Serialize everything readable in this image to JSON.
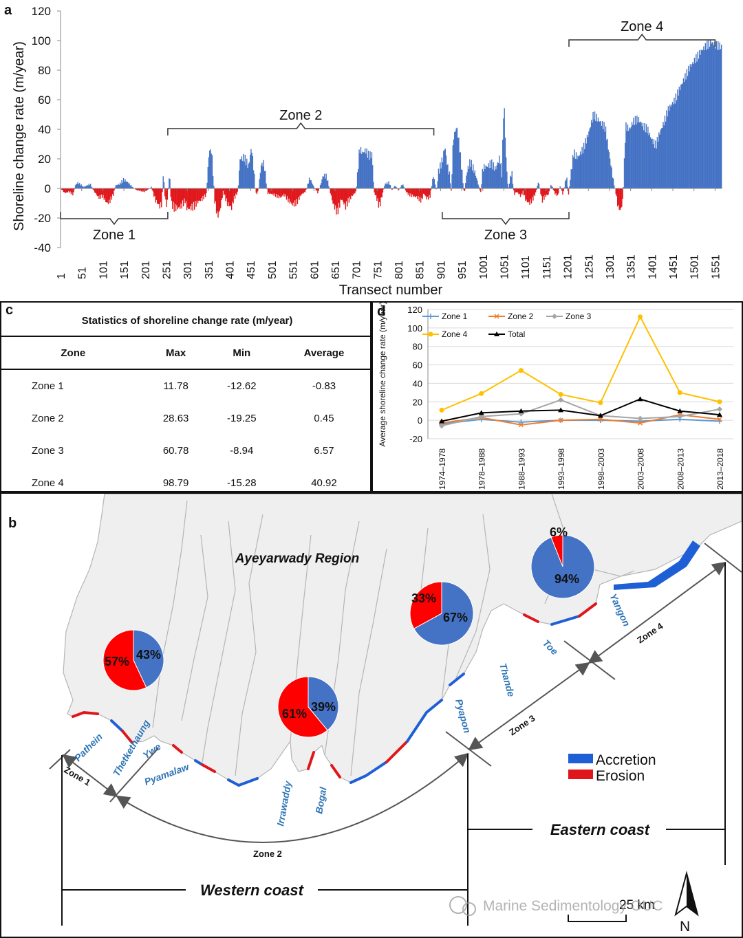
{
  "panel_labels": {
    "a": "a",
    "b": "b",
    "c": "c",
    "d": "d"
  },
  "chart_data": [
    {
      "id": "a",
      "type": "bar",
      "title": "",
      "xlabel": "Transect number",
      "ylabel": "Shoreline change rate (m/year)",
      "ylim": [
        -40,
        120
      ],
      "yticks": [
        -40,
        -20,
        0,
        20,
        40,
        60,
        80,
        100,
        120
      ],
      "xlim": [
        1,
        1565
      ],
      "xticks": [
        1,
        51,
        101,
        151,
        201,
        251,
        301,
        351,
        401,
        451,
        501,
        551,
        601,
        651,
        701,
        751,
        801,
        851,
        901,
        951,
        1001,
        1051,
        1101,
        1151,
        1201,
        1251,
        1301,
        1351,
        1401,
        1451,
        1501,
        1551
      ],
      "colors": {
        "positive": "#4472c4",
        "negative": "#e0161b"
      },
      "zones": [
        {
          "label": "Zone 1",
          "start": 1,
          "end": 255,
          "side": "below"
        },
        {
          "label": "Zone 2",
          "start": 255,
          "end": 885,
          "side": "above"
        },
        {
          "label": "Zone 3",
          "start": 905,
          "end": 1205,
          "side": "below"
        },
        {
          "label": "Zone 4",
          "start": 1205,
          "end": 1551,
          "side": "above"
        }
      ],
      "profile": [
        [
          1,
          0
        ],
        [
          10,
          -3
        ],
        [
          20,
          -2
        ],
        [
          30,
          -4
        ],
        [
          35,
          2
        ],
        [
          40,
          4
        ],
        [
          55,
          1
        ],
        [
          70,
          3
        ],
        [
          80,
          -2
        ],
        [
          90,
          -6
        ],
        [
          100,
          -5
        ],
        [
          110,
          -10
        ],
        [
          115,
          -9
        ],
        [
          125,
          -4
        ],
        [
          130,
          2
        ],
        [
          140,
          3
        ],
        [
          150,
          6
        ],
        [
          160,
          4
        ],
        [
          170,
          1
        ],
        [
          180,
          -1
        ],
        [
          200,
          -2
        ],
        [
          215,
          1
        ],
        [
          225,
          -8
        ],
        [
          235,
          -12
        ],
        [
          240,
          -10
        ],
        [
          243,
          11
        ],
        [
          248,
          -8
        ],
        [
          252,
          -12
        ],
        [
          258,
          11
        ],
        [
          262,
          -10
        ],
        [
          270,
          -13
        ],
        [
          280,
          -13
        ],
        [
          285,
          -12
        ],
        [
          295,
          -8
        ],
        [
          300,
          -14
        ],
        [
          315,
          -12
        ],
        [
          325,
          -9
        ],
        [
          335,
          -7
        ],
        [
          345,
          -4
        ],
        [
          352,
          26
        ],
        [
          358,
          25
        ],
        [
          365,
          -8
        ],
        [
          372,
          -19
        ],
        [
          378,
          -14
        ],
        [
          385,
          -2
        ],
        [
          395,
          -10
        ],
        [
          405,
          -13
        ],
        [
          410,
          -7
        ],
        [
          420,
          -2
        ],
        [
          425,
          20
        ],
        [
          435,
          21
        ],
        [
          445,
          15
        ],
        [
          452,
          28
        ],
        [
          458,
          12
        ],
        [
          462,
          -4
        ],
        [
          468,
          -2
        ],
        [
          475,
          16
        ],
        [
          482,
          17
        ],
        [
          490,
          -3
        ],
        [
          505,
          -4
        ],
        [
          520,
          -6
        ],
        [
          530,
          -4
        ],
        [
          540,
          -8
        ],
        [
          550,
          -11
        ],
        [
          560,
          -9
        ],
        [
          570,
          -4
        ],
        [
          580,
          -2
        ],
        [
          590,
          7
        ],
        [
          600,
          1
        ],
        [
          610,
          -3
        ],
        [
          622,
          9
        ],
        [
          630,
          8
        ],
        [
          640,
          -4
        ],
        [
          645,
          -10
        ],
        [
          655,
          -16
        ],
        [
          665,
          -7
        ],
        [
          675,
          -12
        ],
        [
          682,
          -8
        ],
        [
          690,
          -5
        ],
        [
          700,
          -2
        ],
        [
          708,
          27
        ],
        [
          715,
          24
        ],
        [
          722,
          26
        ],
        [
          730,
          22
        ],
        [
          738,
          23
        ],
        [
          742,
          -2
        ],
        [
          748,
          -6
        ],
        [
          755,
          -12
        ],
        [
          762,
          -4
        ],
        [
          768,
          3
        ],
        [
          778,
          4
        ],
        [
          785,
          -1
        ],
        [
          792,
          2
        ],
        [
          800,
          -1
        ],
        [
          810,
          3
        ],
        [
          818,
          -2
        ],
        [
          825,
          -4
        ],
        [
          835,
          -5
        ],
        [
          845,
          -6
        ],
        [
          855,
          -8
        ],
        [
          860,
          -3
        ],
        [
          868,
          -7
        ],
        [
          875,
          -5
        ],
        [
          883,
          9
        ],
        [
          890,
          -2
        ],
        [
          895,
          11
        ],
        [
          905,
          20
        ],
        [
          910,
          29
        ],
        [
          915,
          17
        ],
        [
          922,
          8
        ],
        [
          925,
          -2
        ],
        [
          930,
          34
        ],
        [
          938,
          42
        ],
        [
          944,
          30
        ],
        [
          950,
          13
        ],
        [
          956,
          -4
        ],
        [
          962,
          11
        ],
        [
          970,
          18
        ],
        [
          980,
          12
        ],
        [
          990,
          2
        ],
        [
          995,
          -3
        ],
        [
          1000,
          14
        ],
        [
          1010,
          15
        ],
        [
          1020,
          17
        ],
        [
          1030,
          13
        ],
        [
          1040,
          21
        ],
        [
          1045,
          10
        ],
        [
          1050,
          60
        ],
        [
          1055,
          20
        ],
        [
          1060,
          -1
        ],
        [
          1068,
          12
        ],
        [
          1074,
          -4
        ],
        [
          1080,
          -2
        ],
        [
          1090,
          -5
        ],
        [
          1095,
          -2
        ],
        [
          1102,
          -8
        ],
        [
          1110,
          -10
        ],
        [
          1118,
          -7
        ],
        [
          1125,
          -3
        ],
        [
          1132,
          5
        ],
        [
          1140,
          -8
        ],
        [
          1148,
          -5
        ],
        [
          1155,
          -4
        ],
        [
          1162,
          3
        ],
        [
          1170,
          -3
        ],
        [
          1178,
          -5
        ],
        [
          1182,
          2
        ],
        [
          1190,
          -4
        ],
        [
          1198,
          9
        ],
        [
          1203,
          -4
        ],
        [
          1208,
          9
        ],
        [
          1215,
          24
        ],
        [
          1225,
          21
        ],
        [
          1238,
          27
        ],
        [
          1250,
          37
        ],
        [
          1262,
          50
        ],
        [
          1275,
          46
        ],
        [
          1290,
          41
        ],
        [
          1300,
          22
        ],
        [
          1308,
          7
        ],
        [
          1315,
          -3
        ],
        [
          1320,
          -12
        ],
        [
          1326,
          -15
        ],
        [
          1332,
          -7
        ],
        [
          1338,
          42
        ],
        [
          1348,
          40
        ],
        [
          1355,
          45
        ],
        [
          1368,
          47
        ],
        [
          1380,
          42
        ],
        [
          1390,
          40
        ],
        [
          1400,
          33
        ],
        [
          1410,
          29
        ],
        [
          1418,
          37
        ],
        [
          1428,
          44
        ],
        [
          1440,
          54
        ],
        [
          1455,
          60
        ],
        [
          1470,
          70
        ],
        [
          1490,
          82
        ],
        [
          1505,
          88
        ],
        [
          1520,
          94
        ],
        [
          1531,
          97
        ],
        [
          1541,
          99
        ],
        [
          1551,
          97
        ],
        [
          1565,
          96
        ]
      ]
    },
    {
      "id": "d",
      "type": "line",
      "ylabel": "Average shoreline change rate (m/year)",
      "ylim": [
        -20,
        120
      ],
      "yticks": [
        -20,
        0,
        20,
        40,
        60,
        80,
        100,
        120
      ],
      "categories": [
        "1974–1978",
        "1978–1988",
        "1988–1993",
        "1993–1998",
        "1998–2003",
        "2003–2008",
        "2008–2013",
        "2013–2018"
      ],
      "series": [
        {
          "name": "Zone 1",
          "color": "#5b9bd5",
          "marker": "plus",
          "values": [
            -4,
            1,
            -2,
            0,
            0,
            -1,
            1,
            -1
          ]
        },
        {
          "name": "Zone 2",
          "color": "#ed7d31",
          "marker": "cross",
          "values": [
            -3,
            3,
            -5,
            0,
            1,
            -3,
            6,
            1
          ]
        },
        {
          "name": "Zone 3",
          "color": "#a5a5a5",
          "marker": "diamond",
          "values": [
            -6,
            4,
            7,
            22,
            5,
            2,
            4,
            12
          ]
        },
        {
          "name": "Zone 4",
          "color": "#ffc000",
          "marker": "circle",
          "values": [
            11,
            29,
            54,
            28,
            19,
            112,
            30,
            20
          ]
        },
        {
          "name": "Total",
          "color": "#000000",
          "marker": "triangle",
          "values": [
            -1,
            8,
            10,
            11,
            5,
            23,
            10,
            6
          ]
        }
      ]
    }
  ],
  "stats_table": {
    "title": "Statistics of shoreline change rate (m/year)",
    "headers": [
      "Zone",
      "Max",
      "Min",
      "Average"
    ],
    "rows": [
      [
        "Zone 1",
        "11.78",
        "-12.62",
        "-0.83"
      ],
      [
        "Zone 2",
        "28.63",
        "-19.25",
        "0.45"
      ],
      [
        "Zone 3",
        "60.78",
        "-8.94",
        "6.57"
      ],
      [
        "Zone 4",
        "98.79",
        "-15.28",
        "40.92"
      ]
    ]
  },
  "map": {
    "region_label": "Ayeyarwady Region",
    "places": [
      "Pathein",
      "Thetkethaung",
      "Ywe",
      "Pyamalaw",
      "Irrawaddy",
      "Bogal",
      "Pyapon",
      "Thande",
      "Toe",
      "Yangon"
    ],
    "zone_labels": [
      "Zone 1",
      "Zone 2",
      "Zone 3",
      "Zone 4"
    ],
    "coast_labels": {
      "west": "Western coast",
      "east": "Eastern coast"
    },
    "pies": [
      {
        "zone": "Zone 1",
        "erosion_pct": 57,
        "accretion_pct": 43,
        "erosion_label": "57%",
        "accretion_label": "43%"
      },
      {
        "zone": "Zone 2",
        "erosion_pct": 61,
        "accretion_pct": 39,
        "erosion_label": "61%",
        "accretion_label": "39%"
      },
      {
        "zone": "Zone 3",
        "erosion_pct": 33,
        "accretion_pct": 67,
        "erosion_label": "33%",
        "accretion_label": "67%"
      },
      {
        "zone": "Zone 4",
        "erosion_pct": 6,
        "accretion_pct": 94,
        "erosion_label": "6%",
        "accretion_label": "94%"
      }
    ],
    "legend": [
      {
        "label": "Accretion",
        "color": "#1f5fd6"
      },
      {
        "label": "Erosion",
        "color": "#e0161b"
      }
    ],
    "scale_label": "25 km",
    "north_label": "N",
    "watermark": "Marine Sedimentology OUC"
  },
  "colors": {
    "accretion": "#4472c4",
    "erosion": "#e0161b",
    "land": "#efefef",
    "label_blue": "#2e75b6"
  }
}
